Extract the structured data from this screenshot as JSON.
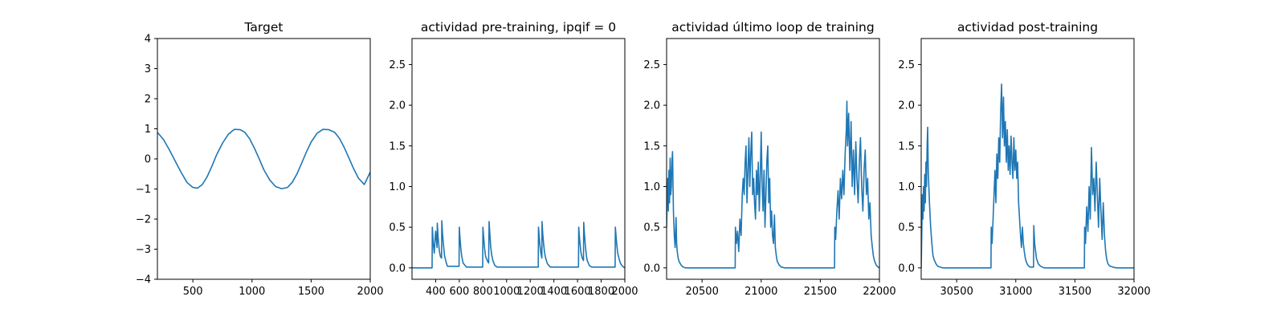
{
  "colors": {
    "series": "#1f77b4",
    "axes": "#000000",
    "background": "#ffffff"
  },
  "chart_data": [
    {
      "type": "line",
      "title": "Target",
      "xlabel": "",
      "ylabel": "",
      "xlim": [
        200,
        2000
      ],
      "ylim": [
        -4,
        4
      ],
      "xticks": [
        500,
        1000,
        1500,
        2000
      ],
      "yticks": [
        -4,
        -3,
        -2,
        -1,
        0,
        1,
        2,
        3,
        4
      ],
      "xtick_labels": [
        "500",
        "1000",
        "1500",
        "2000"
      ],
      "ytick_labels": [
        "−4",
        "−3",
        "−2",
        "−1",
        "0",
        "1",
        "2",
        "3",
        "4"
      ],
      "grid": false,
      "series": [
        {
          "x": [
            200,
            250,
            300,
            350,
            400,
            450,
            500,
            540,
            580,
            620,
            660,
            700,
            750,
            800,
            850,
            900,
            940,
            980,
            1020,
            1060,
            1100,
            1150,
            1200,
            1250,
            1300,
            1340,
            1380,
            1420,
            1460,
            1500,
            1550,
            1600,
            1650,
            1700,
            1740,
            1780,
            1820,
            1860,
            1900,
            1950,
            2000
          ],
          "y": [
            0.88,
            0.65,
            0.31,
            -0.07,
            -0.44,
            -0.78,
            -0.95,
            -0.97,
            -0.85,
            -0.6,
            -0.25,
            0.13,
            0.52,
            0.82,
            0.98,
            0.97,
            0.88,
            0.67,
            0.36,
            0.01,
            -0.36,
            -0.7,
            -0.92,
            -0.99,
            -0.95,
            -0.78,
            -0.5,
            -0.14,
            0.23,
            0.56,
            0.85,
            0.98,
            0.97,
            0.88,
            0.68,
            0.38,
            0.03,
            -0.33,
            -0.64,
            -0.85,
            -0.44
          ]
        }
      ]
    },
    {
      "type": "line",
      "title": "actividad pre-training, ipqif = 0",
      "xlabel": "",
      "ylabel": "",
      "xlim": [
        200,
        2000
      ],
      "ylim": [
        -0.14,
        2.82
      ],
      "xticks": [
        400,
        600,
        800,
        1000,
        1200,
        1400,
        1600,
        1800,
        2000
      ],
      "yticks": [
        0.0,
        0.5,
        1.0,
        1.5,
        2.0,
        2.5
      ],
      "xtick_labels": [
        "400",
        "600",
        "800",
        "1000",
        "1200",
        "1400",
        "1600",
        "1800",
        "2000"
      ],
      "ytick_labels": [
        "0.0",
        "0.5",
        "1.0",
        "1.5",
        "2.0",
        "2.5"
      ],
      "grid": false,
      "series": [
        {
          "x": [
            200,
            370,
            372,
            375,
            380,
            388,
            395,
            400,
            412,
            414,
            420,
            430,
            440,
            450,
            452,
            458,
            466,
            475,
            490,
            500,
            598,
            600,
            604,
            612,
            620,
            632,
            660,
            798,
            800,
            806,
            814,
            822,
            840,
            848,
            852,
            858,
            866,
            874,
            884,
            900,
            920,
            1268,
            1270,
            1275,
            1282,
            1290,
            1298,
            1300,
            1306,
            1314,
            1322,
            1330,
            1345,
            1370,
            1608,
            1610,
            1615,
            1622,
            1630,
            1640,
            1650,
            1652,
            1658,
            1666,
            1674,
            1682,
            1700,
            1720,
            1918,
            1920,
            1925,
            1932,
            1940,
            1950,
            1962,
            1975,
            1990,
            2000
          ],
          "y": [
            0,
            0,
            0.5,
            0.42,
            0.3,
            0.18,
            0.35,
            0.45,
            0.25,
            0.55,
            0.4,
            0.22,
            0.14,
            0.12,
            0.58,
            0.42,
            0.28,
            0.15,
            0.06,
            0.02,
            0.02,
            0.5,
            0.4,
            0.25,
            0.15,
            0.06,
            0.01,
            0.01,
            0.5,
            0.38,
            0.24,
            0.14,
            0.08,
            0.06,
            0.57,
            0.42,
            0.26,
            0.16,
            0.09,
            0.03,
            0.01,
            0.01,
            0.5,
            0.4,
            0.28,
            0.18,
            0.12,
            0.57,
            0.42,
            0.28,
            0.18,
            0.12,
            0.05,
            0.01,
            0.01,
            0.5,
            0.4,
            0.28,
            0.18,
            0.12,
            0.09,
            0.56,
            0.42,
            0.28,
            0.16,
            0.09,
            0.03,
            0.01,
            0.01,
            0.5,
            0.4,
            0.28,
            0.18,
            0.12,
            0.06,
            0.03,
            0.01,
            0.0
          ]
        }
      ]
    },
    {
      "type": "line",
      "title": "actividad último loop de training",
      "xlabel": "",
      "ylabel": "",
      "xlim": [
        20200,
        22000
      ],
      "ylim": [
        -0.14,
        2.82
      ],
      "xticks": [
        20500,
        21000,
        21500,
        22000
      ],
      "yticks": [
        0.0,
        0.5,
        1.0,
        1.5,
        2.0,
        2.5
      ],
      "xtick_labels": [
        "20500",
        "21000",
        "21500",
        "22000"
      ],
      "ytick_labels": [
        "0.0",
        "0.5",
        "1.0",
        "1.5",
        "2.0",
        "2.5"
      ],
      "grid": false,
      "series": [
        {
          "x": [
            20200,
            20205,
            20210,
            20215,
            20220,
            20225,
            20230,
            20235,
            20240,
            20245,
            20250,
            20258,
            20265,
            20272,
            20280,
            20285,
            20290,
            20298,
            20305,
            20320,
            20340,
            20360,
            20780,
            20782,
            20790,
            20800,
            20810,
            20820,
            20830,
            20840,
            20848,
            20856,
            20864,
            20872,
            20880,
            20888,
            20896,
            20904,
            20912,
            20920,
            20928,
            20936,
            20944,
            20952,
            20960,
            20968,
            20976,
            20984,
            20992,
            21000,
            21008,
            21016,
            21024,
            21032,
            21040,
            21048,
            21056,
            21064,
            21072,
            21080,
            21088,
            21096,
            21104,
            21112,
            21120,
            21128,
            21136,
            21150,
            21170,
            21200,
            21620,
            21622,
            21630,
            21640,
            21650,
            21660,
            21670,
            21680,
            21690,
            21700,
            21710,
            21720,
            21725,
            21730,
            21740,
            21750,
            21760,
            21770,
            21780,
            21790,
            21800,
            21810,
            21820,
            21830,
            21840,
            21850,
            21860,
            21870,
            21880,
            21890,
            21900,
            21910,
            21920,
            21930,
            21940,
            21950,
            21960,
            21975,
            21990,
            22000
          ],
          "y": [
            0.5,
            0.9,
            1.1,
            0.7,
            1.2,
            0.8,
            1.35,
            0.9,
            1.0,
            1.3,
            1.43,
            0.7,
            0.4,
            0.25,
            0.62,
            0.3,
            0.2,
            0.12,
            0.08,
            0.04,
            0.01,
            0.0,
            0.0,
            0.5,
            0.3,
            0.45,
            0.2,
            0.6,
            0.4,
            0.9,
            1.1,
            0.9,
            1.3,
            1.5,
            0.8,
            1.2,
            1.6,
            1.0,
            1.4,
            1.67,
            0.9,
            1.1,
            0.8,
            0.6,
            1.2,
            0.9,
            1.3,
            0.7,
            1.1,
            1.67,
            1.0,
            0.7,
            1.2,
            0.5,
            0.9,
            1.3,
            1.5,
            0.8,
            1.1,
            0.5,
            0.7,
            0.4,
            0.3,
            0.65,
            0.25,
            0.15,
            0.08,
            0.04,
            0.01,
            0.0,
            0.0,
            0.5,
            0.35,
            0.7,
            0.95,
            0.6,
            1.1,
            0.85,
            1.2,
            0.9,
            1.4,
            1.7,
            2.05,
            1.5,
            1.9,
            1.2,
            1.8,
            1.0,
            1.45,
            0.9,
            1.55,
            1.1,
            0.8,
            1.3,
            1.6,
            1.0,
            0.7,
            1.2,
            1.45,
            0.9,
            1.1,
            0.6,
            0.8,
            0.4,
            0.25,
            0.14,
            0.08,
            0.03,
            0.01,
            0.0
          ]
        }
      ]
    },
    {
      "type": "line",
      "title": "actividad post-training",
      "xlabel": "",
      "ylabel": "",
      "xlim": [
        30200,
        32000
      ],
      "ylim": [
        -0.14,
        2.82
      ],
      "xticks": [
        30500,
        31000,
        31500,
        32000
      ],
      "yticks": [
        0.0,
        0.5,
        1.0,
        1.5,
        2.0,
        2.5
      ],
      "xtick_labels": [
        "30500",
        "31000",
        "31500",
        "32000"
      ],
      "ytick_labels": [
        "0.0",
        "0.5",
        "1.0",
        "1.5",
        "2.0",
        "2.5"
      ],
      "grid": false,
      "series": [
        {
          "x": [
            30200,
            30205,
            30210,
            30215,
            30220,
            30225,
            30230,
            30235,
            30240,
            30245,
            30250,
            30255,
            30260,
            30270,
            30280,
            30290,
            30300,
            30310,
            30325,
            30340,
            30360,
            30380,
            30790,
            30792,
            30800,
            30808,
            30816,
            30824,
            30832,
            30840,
            30848,
            30856,
            30864,
            30872,
            30880,
            30888,
            30896,
            30904,
            30912,
            30920,
            30928,
            30936,
            30944,
            30952,
            30960,
            30968,
            30976,
            30984,
            30992,
            31000,
            31008,
            31016,
            31024,
            31032,
            31040,
            31048,
            31056,
            31064,
            31072,
            31080,
            31088,
            31096,
            31104,
            31120,
            31140,
            31150,
            31152,
            31160,
            31175,
            31190,
            31210,
            31240,
            31580,
            31582,
            31590,
            31600,
            31610,
            31620,
            31630,
            31640,
            31650,
            31660,
            31670,
            31680,
            31690,
            31700,
            31710,
            31720,
            31730,
            31740,
            31750,
            31760,
            31770,
            31780,
            31790,
            31800,
            31820,
            31850,
            31900,
            32000
          ],
          "y": [
            0.0,
            0.4,
            0.9,
            0.6,
            1.0,
            0.7,
            1.15,
            0.8,
            1.3,
            1.0,
            1.5,
            1.73,
            1.2,
            0.8,
            0.5,
            0.3,
            0.15,
            0.1,
            0.05,
            0.02,
            0.01,
            0.0,
            0.0,
            0.5,
            0.3,
            0.6,
            0.9,
            1.2,
            0.8,
            1.4,
            1.1,
            1.6,
            1.3,
            1.9,
            2.26,
            1.6,
            2.1,
            1.5,
            1.8,
            1.3,
            1.7,
            1.2,
            1.5,
            1.15,
            1.62,
            1.3,
            1.1,
            1.6,
            1.2,
            1.45,
            1.1,
            1.3,
            0.8,
            0.6,
            0.4,
            0.25,
            0.5,
            0.3,
            0.2,
            0.12,
            0.08,
            0.05,
            0.03,
            0.01,
            0.01,
            0.01,
            0.52,
            0.3,
            0.12,
            0.05,
            0.02,
            0.0,
            0.0,
            0.5,
            0.3,
            0.75,
            0.45,
            1.0,
            0.6,
            1.48,
            0.9,
            1.1,
            0.7,
            1.3,
            0.9,
            0.5,
            1.1,
            0.7,
            0.35,
            0.8,
            0.4,
            0.2,
            0.1,
            0.05,
            0.03,
            0.02,
            0.01,
            0.0,
            0.0,
            0.0
          ]
        }
      ]
    }
  ]
}
